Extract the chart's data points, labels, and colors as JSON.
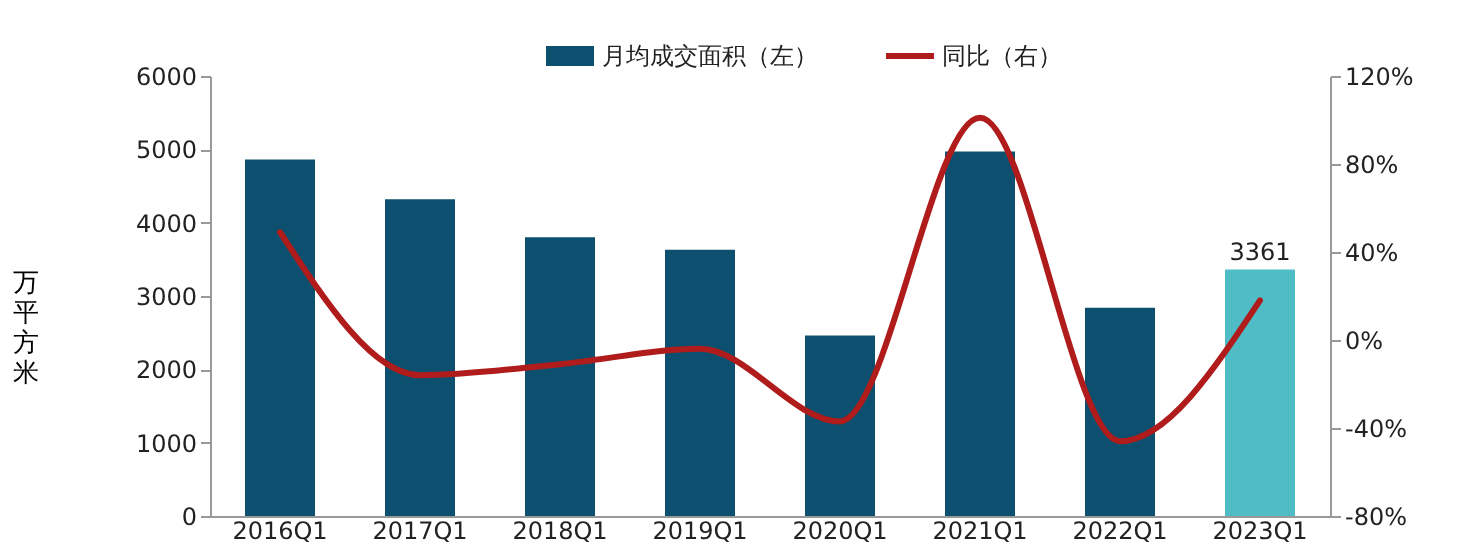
{
  "chart_data": {
    "type": "bar",
    "categories": [
      "2016Q1",
      "2017Q1",
      "2018Q1",
      "2019Q1",
      "2020Q1",
      "2021Q1",
      "2022Q1",
      "2023Q1"
    ],
    "ylabel": "万平方米",
    "series": [
      {
        "name": "月均成交面积（左）",
        "colors": [
          "#0d4f6e",
          "#0d4f6e",
          "#0d4f6e",
          "#0d4f6e",
          "#0d4f6e",
          "#0d4f6e",
          "#0d4f6e",
          "#4fbcc6"
        ],
        "color": "#0d4f6e",
        "values": [
          4860,
          4320,
          3800,
          3630,
          2460,
          4970,
          2840,
          3361
        ],
        "value_labels": [
          null,
          null,
          null,
          null,
          null,
          null,
          null,
          "3361"
        ]
      },
      {
        "name": "同比（右）",
        "type": "line",
        "color": "#b01c1c",
        "axis": "y2",
        "values": [
          49,
          -16,
          -11,
          -4,
          -37,
          101,
          -46,
          18
        ]
      }
    ],
    "ylim": [
      0,
      6000
    ],
    "yticks": [
      0,
      1000,
      2000,
      3000,
      4000,
      5000,
      6000
    ],
    "y2lim": [
      -80,
      120
    ],
    "y2ticks": [
      {
        "value": -80,
        "label": "-80%"
      },
      {
        "value": -40,
        "label": "-40%"
      },
      {
        "value": 0,
        "label": "0%"
      },
      {
        "value": 40,
        "label": "40%"
      },
      {
        "value": 80,
        "label": "80%"
      },
      {
        "value": 120,
        "label": "120%"
      }
    ],
    "legend": "top",
    "grid": false
  }
}
